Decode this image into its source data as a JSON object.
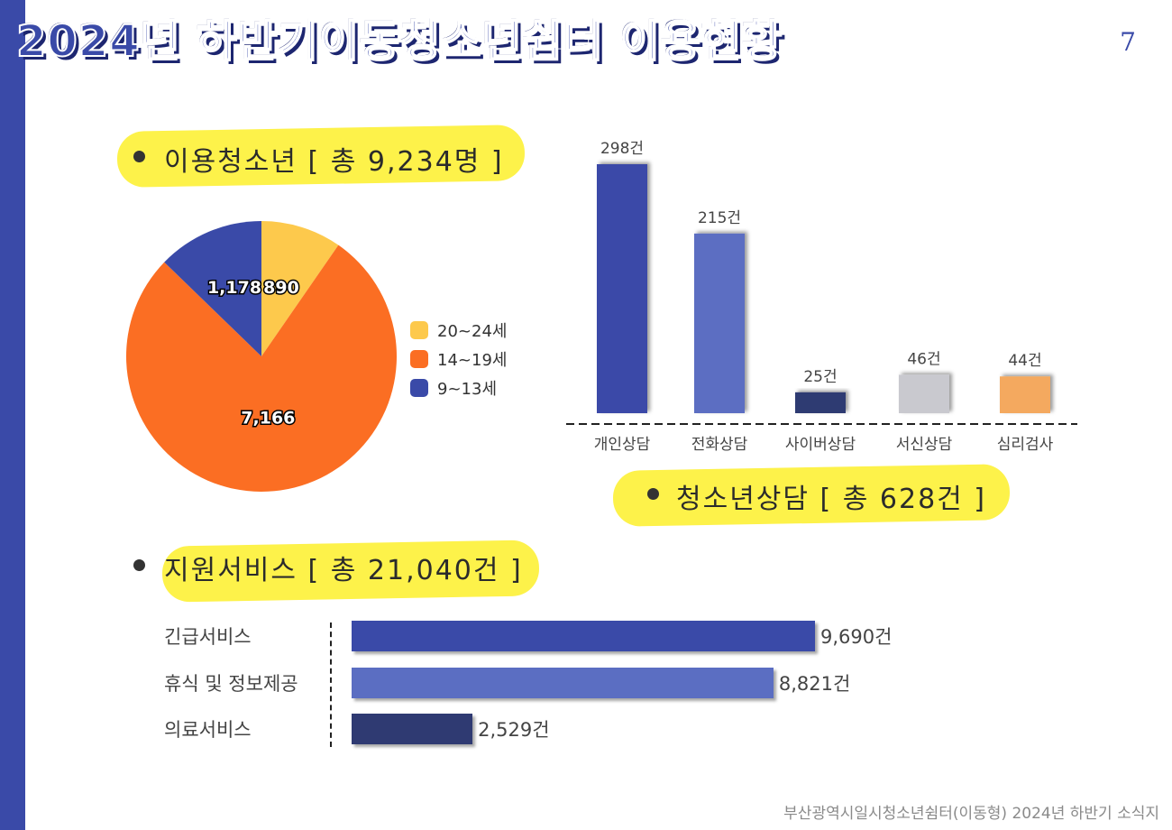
{
  "header": {
    "title": "2024년 하반기이동청소년쉼터 이용현황",
    "page_number": "7"
  },
  "sections": {
    "youth": "이용청소년 [ 총 9,234명 ]",
    "counseling": "청소년상담 [ 총 628건 ]",
    "services": "지원서비스 [ 총 21,040건 ]"
  },
  "footer": {
    "text": "부산광역시일시청소년쉼터(이동형) 2024년 하반기 소식지"
  },
  "colors": {
    "accent": "#3a4aa8",
    "highlight": "#fdf24a"
  },
  "chart_data": [
    {
      "type": "pie",
      "title": "",
      "categories": [
        "20~24세",
        "14~19세",
        "9~13세"
      ],
      "values": [
        890,
        7166,
        1178
      ],
      "labels": [
        "890",
        "7,166",
        "1,178"
      ],
      "colors": [
        "#fdc94c",
        "#fb6e23",
        "#3a4aa8"
      ],
      "legend": "right"
    },
    {
      "type": "bar",
      "title": "",
      "categories": [
        "개인상담",
        "전화상담",
        "사이버상담",
        "서신상담",
        "심리검사"
      ],
      "values": [
        298,
        215,
        25,
        46,
        44
      ],
      "labels": [
        "298건",
        "215건",
        "25건",
        "46건",
        "44건"
      ],
      "colors": [
        "#3a4aa8",
        "#5b6ec2",
        "#2f3a72",
        "#c9c9cf",
        "#f4a95e"
      ],
      "ylim": [
        0,
        298
      ]
    },
    {
      "type": "bar",
      "orientation": "horizontal",
      "title": "",
      "categories": [
        "긴급서비스",
        "휴식 및 정보제공",
        "의료서비스"
      ],
      "values": [
        9690,
        8821,
        2529
      ],
      "labels": [
        "9,690건",
        "8,821건",
        "2,529건"
      ],
      "colors": [
        "#3a4aa8",
        "#5b6ec2",
        "#2f3a72"
      ],
      "xlim": [
        0,
        9690
      ]
    }
  ]
}
